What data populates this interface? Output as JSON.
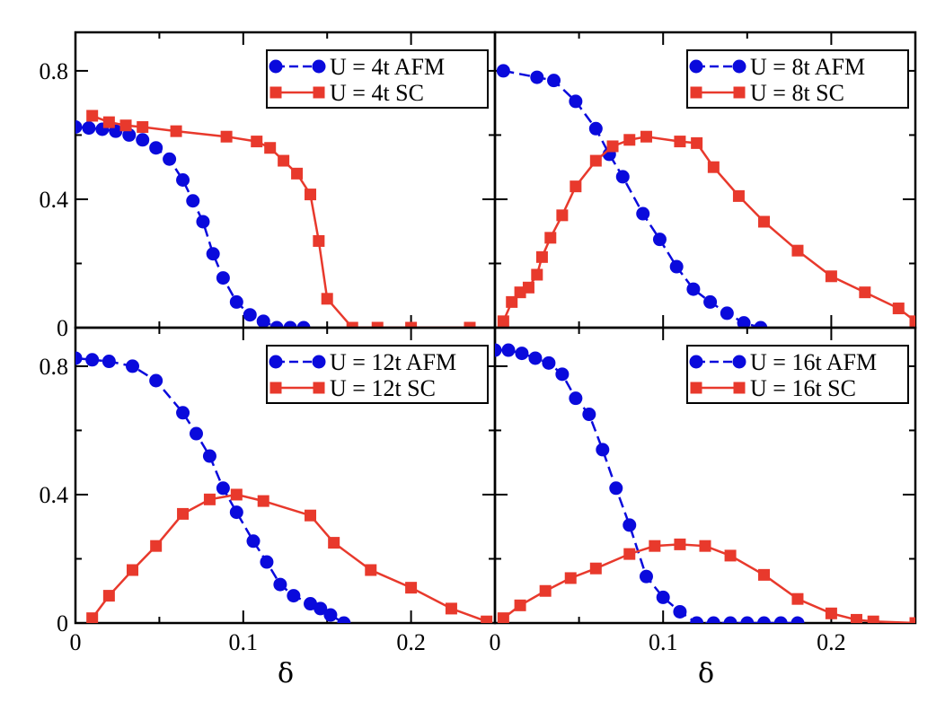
{
  "figure": {
    "xlabel": "δ",
    "xticks": [
      {
        "value": 0,
        "label": "0"
      },
      {
        "value": 0.1,
        "label": "0.1"
      },
      {
        "value": 0.2,
        "label": "0.2"
      }
    ],
    "yticks": [
      {
        "value": 0,
        "label": "0"
      },
      {
        "value": 0.4,
        "label": "0.4"
      },
      {
        "value": 0.8,
        "label": "0.8"
      }
    ],
    "colors": {
      "afm": "#0a0adc",
      "sc": "#e8392c",
      "axis": "#000000"
    }
  },
  "chart_data": [
    {
      "type": "line",
      "panel": "top-left",
      "xlim": [
        0,
        0.25
      ],
      "ylim": [
        0,
        0.92
      ],
      "legend_position": "top-right",
      "series": [
        {
          "name": "U = 4t AFM",
          "marker": "circle",
          "dashed": true,
          "x": [
            0.0,
            0.008,
            0.016,
            0.024,
            0.032,
            0.04,
            0.048,
            0.056,
            0.064,
            0.07,
            0.076,
            0.082,
            0.088,
            0.096,
            0.104,
            0.112,
            0.12,
            0.128,
            0.136
          ],
          "y": [
            0.625,
            0.622,
            0.618,
            0.612,
            0.6,
            0.585,
            0.56,
            0.525,
            0.46,
            0.395,
            0.33,
            0.23,
            0.155,
            0.08,
            0.04,
            0.02,
            0.0,
            0.0,
            0.0
          ]
        },
        {
          "name": "U = 4t  SC",
          "marker": "square",
          "dashed": false,
          "x": [
            0.01,
            0.02,
            0.03,
            0.04,
            0.06,
            0.09,
            0.108,
            0.116,
            0.124,
            0.132,
            0.14,
            0.145,
            0.15,
            0.165,
            0.18,
            0.2,
            0.235
          ],
          "y": [
            0.66,
            0.64,
            0.63,
            0.625,
            0.612,
            0.595,
            0.58,
            0.56,
            0.52,
            0.48,
            0.415,
            0.27,
            0.09,
            0.0,
            0.0,
            0.0,
            0.0
          ]
        }
      ]
    },
    {
      "type": "line",
      "panel": "top-right",
      "xlim": [
        0,
        0.25
      ],
      "ylim": [
        0,
        0.92
      ],
      "legend_position": "top-right",
      "series": [
        {
          "name": "U = 8t AFM",
          "marker": "circle",
          "dashed": true,
          "x": [
            0.005,
            0.025,
            0.035,
            0.048,
            0.06,
            0.068,
            0.076,
            0.088,
            0.098,
            0.108,
            0.118,
            0.128,
            0.138,
            0.148,
            0.158
          ],
          "y": [
            0.8,
            0.78,
            0.77,
            0.705,
            0.62,
            0.54,
            0.47,
            0.355,
            0.275,
            0.19,
            0.12,
            0.08,
            0.045,
            0.015,
            0.0
          ],
          "note": ""
        },
        {
          "name": "U = 8t  SC",
          "marker": "square",
          "dashed": false,
          "x": [
            0.005,
            0.01,
            0.015,
            0.02,
            0.025,
            0.028,
            0.033,
            0.04,
            0.048,
            0.06,
            0.07,
            0.08,
            0.09,
            0.11,
            0.12,
            0.13,
            0.145,
            0.16,
            0.18,
            0.2,
            0.22,
            0.24,
            0.25
          ],
          "y": [
            0.02,
            0.08,
            0.11,
            0.125,
            0.165,
            0.22,
            0.28,
            0.35,
            0.44,
            0.52,
            0.565,
            0.585,
            0.595,
            0.58,
            0.575,
            0.5,
            0.41,
            0.33,
            0.24,
            0.16,
            0.11,
            0.06,
            0.02
          ]
        }
      ]
    },
    {
      "type": "line",
      "panel": "bottom-left",
      "xlim": [
        0,
        0.25
      ],
      "ylim": [
        0,
        0.92
      ],
      "legend_position": "top-right",
      "series": [
        {
          "name": "U = 12t AFM",
          "marker": "circle",
          "dashed": true,
          "x": [
            0.0,
            0.01,
            0.02,
            0.034,
            0.048,
            0.064,
            0.072,
            0.08,
            0.088,
            0.096,
            0.106,
            0.114,
            0.122,
            0.13,
            0.14,
            0.146,
            0.152,
            0.16
          ],
          "y": [
            0.825,
            0.82,
            0.815,
            0.8,
            0.755,
            0.655,
            0.59,
            0.52,
            0.42,
            0.345,
            0.255,
            0.19,
            0.12,
            0.085,
            0.06,
            0.045,
            0.025,
            0.0
          ]
        },
        {
          "name": "U = 12t  SC",
          "marker": "square",
          "dashed": false,
          "x": [
            0.01,
            0.02,
            0.034,
            0.048,
            0.064,
            0.08,
            0.096,
            0.112,
            0.14,
            0.154,
            0.176,
            0.2,
            0.224,
            0.245
          ],
          "y": [
            0.015,
            0.085,
            0.165,
            0.24,
            0.34,
            0.385,
            0.4,
            0.38,
            0.335,
            0.25,
            0.165,
            0.11,
            0.045,
            0.005
          ]
        }
      ]
    },
    {
      "type": "line",
      "panel": "bottom-right",
      "xlim": [
        0,
        0.25
      ],
      "ylim": [
        0,
        0.92
      ],
      "legend_position": "top-right",
      "series": [
        {
          "name": "U = 16t AFM",
          "marker": "circle",
          "dashed": true,
          "x": [
            0.0,
            0.008,
            0.016,
            0.024,
            0.032,
            0.04,
            0.048,
            0.056,
            0.064,
            0.072,
            0.08,
            0.09,
            0.1,
            0.11,
            0.12,
            0.13,
            0.14,
            0.15,
            0.16,
            0.17,
            0.18
          ],
          "y": [
            0.85,
            0.85,
            0.84,
            0.825,
            0.81,
            0.775,
            0.7,
            0.65,
            0.54,
            0.42,
            0.305,
            0.145,
            0.08,
            0.035,
            0.0,
            0.0,
            0.0,
            0.0,
            0.0,
            0.0,
            0.0
          ]
        },
        {
          "name": "U = 16t  SC",
          "marker": "square",
          "dashed": false,
          "x": [
            0.005,
            0.015,
            0.03,
            0.045,
            0.06,
            0.08,
            0.095,
            0.11,
            0.125,
            0.14,
            0.16,
            0.18,
            0.2,
            0.215,
            0.225,
            0.25
          ],
          "y": [
            0.015,
            0.055,
            0.1,
            0.14,
            0.17,
            0.215,
            0.24,
            0.245,
            0.24,
            0.21,
            0.15,
            0.075,
            0.03,
            0.01,
            0.005,
            0.0
          ]
        }
      ]
    }
  ]
}
